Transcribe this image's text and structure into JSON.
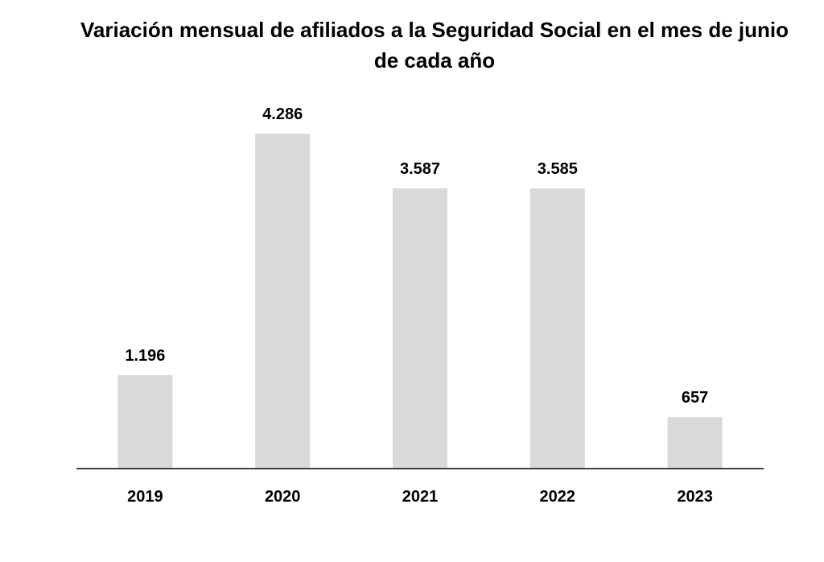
{
  "chart_data": {
    "type": "bar",
    "title": "Variación mensual de afiliados a la Seguridad Social en el mes de junio de cada año",
    "xlabel": "",
    "ylabel": "",
    "categories": [
      "2019",
      "2020",
      "2021",
      "2022",
      "2023"
    ],
    "values": [
      1196,
      4286,
      3587,
      3585,
      657
    ],
    "value_labels": [
      "1.196",
      "4.286",
      "3.587",
      "3.585",
      "657"
    ],
    "ylim": [
      0,
      4286
    ],
    "grid": false,
    "legend": "none",
    "colors": {
      "bar": "#d9d9d9",
      "axis": "#000000",
      "text": "#000000"
    }
  }
}
